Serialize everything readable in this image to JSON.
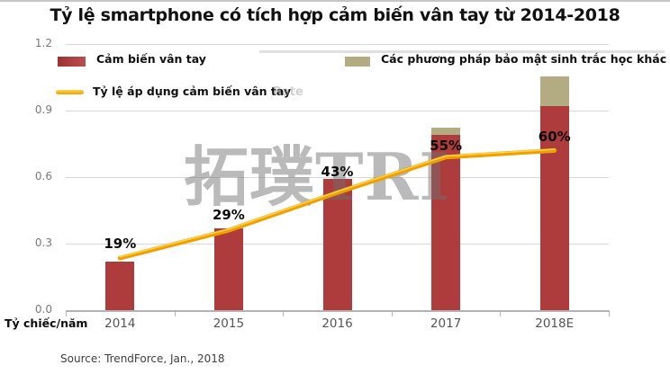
{
  "title": "Tỷ lệ smartphone có tích hợp cảm biến vân tay từ 2014-2018",
  "legend": {
    "bar_red": "Cảm biến vân tay",
    "bar_tan": "Các phương pháp bảo mật sinh trắc học khác",
    "line": "Tỷ lệ áp dụng cảm biến vân tay",
    "ghost": "Rate"
  },
  "watermark": "拓璞TRI",
  "axis": {
    "y_unit": "Tỷ chiếc/năm",
    "y_ticks": [
      "0.0",
      "0.3",
      "0.6",
      "0.9",
      "1.2"
    ]
  },
  "source": "Source: TrendForce, Jan., 2018",
  "colors": {
    "bar_red": "#ae3c3c",
    "bar_tan": "#b3ac82",
    "line": "#efa000",
    "line_highlight": "#ffd24a",
    "grid": "#d8d8d8",
    "axis": "#b3b3b3"
  },
  "chart_data": {
    "type": "bar",
    "title": "Tỷ lệ smartphone có tích hợp cảm biến vân tay từ 2014-2018",
    "categories": [
      "2014",
      "2015",
      "2016",
      "2017",
      "2018E"
    ],
    "series": [
      {
        "name": "Cảm biến vân tay",
        "type": "bar",
        "color": "#ae3c3c",
        "values": [
          0.22,
          0.37,
          0.59,
          0.79,
          0.92
        ]
      },
      {
        "name": "Các phương pháp bảo mật sinh trắc học khác",
        "type": "bar-stacked",
        "color": "#b3ac82",
        "values": [
          0,
          0,
          0,
          0.033,
          0.135
        ]
      },
      {
        "name": "Tỷ lệ áp dụng cảm biến vân tay",
        "type": "line",
        "color": "#efa000",
        "values_pct": [
          19,
          29,
          43,
          55,
          60
        ],
        "plotted_values": [
          0.235,
          0.36,
          0.53,
          0.69,
          0.72
        ]
      }
    ],
    "bar_labels": [
      "19%",
      "29%",
      "43%",
      "55%",
      "60%"
    ],
    "label_dy": [
      -20,
      -15,
      -8,
      20,
      67
    ],
    "ylabel": "Tỷ chiếc/năm",
    "ylim": [
      0,
      1.2
    ],
    "y_tick_values": [
      0.0,
      0.3,
      0.6,
      0.9,
      1.2
    ],
    "grid": true,
    "legend_position": "top"
  }
}
